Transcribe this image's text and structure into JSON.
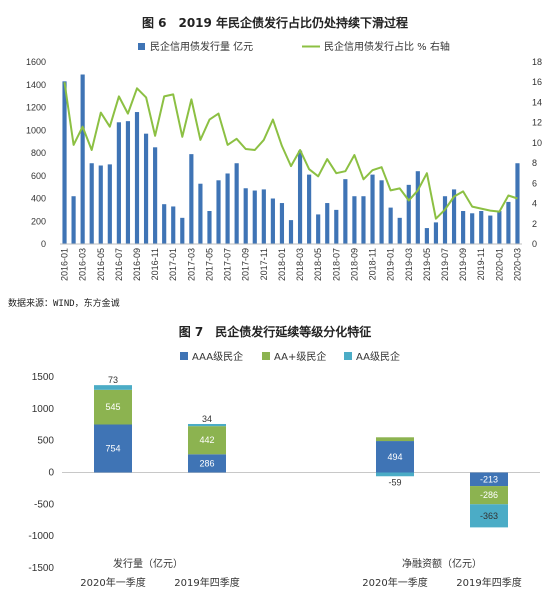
{
  "figure6": {
    "title": "图 6　2019 年民企债发行占比仍处持续下滑过程",
    "source": "数据来源：WIND，东方金诚"
  },
  "figure7": {
    "title": "图 7　民企债发行延续等级分化特征"
  },
  "chart_data": [
    {
      "type": "bar+line",
      "title": "图 6　2019 年民企债发行占比仍处持续下滑过程",
      "x_tick_labels": [
        "2016-01",
        "2016-03",
        "2016-05",
        "2016-07",
        "2016-09",
        "2016-11",
        "2017-01",
        "2017-03",
        "2017-05",
        "2017-07",
        "2017-09",
        "2017-11",
        "2018-01",
        "2018-03",
        "2018-05",
        "2018-07",
        "2018-09",
        "2018-11",
        "2019-01",
        "2019-03",
        "2019-05",
        "2019-07",
        "2019-09",
        "2019-11",
        "2020-01",
        "2020-03"
      ],
      "y_left": {
        "lim": [
          0,
          1600
        ],
        "ticks": [
          0,
          200,
          400,
          600,
          800,
          1000,
          1200,
          1400,
          1600
        ]
      },
      "y_right": {
        "lim": [
          0,
          18
        ],
        "ticks": [
          0,
          2,
          4,
          6,
          8,
          10,
          12,
          14,
          16,
          18
        ]
      },
      "legend_position": "top",
      "series": [
        {
          "name": "民企信用债发行量 亿元",
          "type": "bar",
          "axis": "left",
          "color": "#3f74b5",
          "values": [
            1430,
            420,
            1490,
            710,
            690,
            700,
            1070,
            1080,
            1160,
            970,
            850,
            350,
            330,
            230,
            790,
            530,
            290,
            560,
            620,
            710,
            490,
            470,
            480,
            400,
            360,
            210,
            820,
            610,
            260,
            360,
            300,
            570,
            420,
            420,
            610,
            560,
            320,
            230,
            520,
            640,
            140,
            190,
            420,
            480,
            290,
            270,
            290,
            250,
            290,
            370,
            710
          ]
        },
        {
          "name": "民企信用债发行占比 % 右轴",
          "type": "line",
          "axis": "right",
          "color": "#8cc043",
          "values": [
            16.0,
            9.8,
            11.6,
            9.3,
            13.0,
            11.6,
            14.6,
            12.9,
            15.4,
            14.5,
            10.7,
            14.6,
            14.8,
            10.6,
            14.3,
            10.3,
            12.3,
            12.9,
            9.8,
            10.4,
            9.4,
            9.3,
            10.3,
            12.3,
            9.7,
            7.7,
            9.3,
            7.4,
            6.7,
            8.4,
            7.0,
            7.2,
            8.8,
            6.4,
            7.3,
            7.6,
            5.3,
            5.5,
            4.3,
            5.3,
            7.0,
            2.5,
            3.4,
            4.7,
            5.2,
            3.7,
            3.5,
            3.3,
            3.2,
            4.8,
            4.5
          ]
        }
      ]
    },
    {
      "type": "bar",
      "stacked": true,
      "title": "图 7　民企债发行延续等级分化特征",
      "group_labels": [
        "发行量（亿元）",
        "净融资额（亿元）"
      ],
      "categories": [
        "2020年一季度",
        "2019年四季度",
        "2020年一季度",
        "2019年四季度"
      ],
      "ylim": [
        -1500,
        1500
      ],
      "y_ticks": [
        -1500,
        -1000,
        -500,
        0,
        500,
        1000,
        1500
      ],
      "legend_position": "top",
      "series": [
        {
          "name": "AAA级民企",
          "color": "#3f74b5",
          "values": [
            754,
            286,
            494,
            -213
          ]
        },
        {
          "name": "AA+级民企",
          "color": "#8cb350",
          "values": [
            545,
            442,
            59,
            -286
          ]
        },
        {
          "name": "AA级民企",
          "color": "#4bacc6",
          "values": [
            73,
            34,
            -59,
            -363
          ]
        }
      ]
    }
  ]
}
